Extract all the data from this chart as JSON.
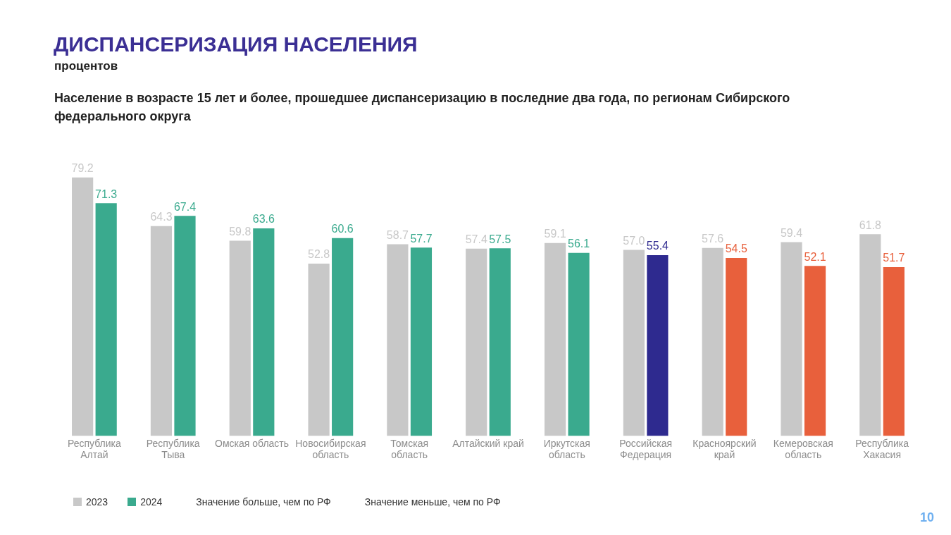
{
  "chart_data": {
    "type": "bar",
    "title": "ДИСПАНСЕРИЗАЦИЯ НАСЕЛЕНИЯ",
    "subtitle": "процентов",
    "categories": [
      "Республика Алтай",
      "Республика Тыва",
      "Омская область",
      "Новосибирская область",
      "Томская область",
      "Алтайский край",
      "Иркутская область",
      "Российская Федерация",
      "Красноярский край",
      "Кемеровская область",
      "Республика Хакасия"
    ],
    "series": [
      {
        "name": "2023",
        "color": "#c8c8c8",
        "values": [
          79.2,
          64.3,
          59.8,
          52.8,
          58.7,
          57.4,
          59.1,
          57.0,
          57.6,
          59.4,
          61.8
        ],
        "value_labels": [
          "79.2",
          "64.3",
          "59.8",
          "52.8",
          "58.7",
          "57.4",
          "59.1",
          "57.0",
          "57.6",
          "59.4",
          "61.8"
        ]
      },
      {
        "name": "2024",
        "colors": [
          "#3aaa8e",
          "#3aaa8e",
          "#3aaa8e",
          "#3aaa8e",
          "#3aaa8e",
          "#3aaa8e",
          "#3aaa8e",
          "#2e2a8f",
          "#e8603c",
          "#e8603c",
          "#e8603c"
        ],
        "values": [
          71.3,
          67.4,
          63.6,
          60.6,
          57.7,
          57.5,
          56.1,
          55.4,
          54.5,
          52.1,
          51.7
        ],
        "value_labels": [
          "71.3",
          "67.4",
          "63.6",
          "60.6",
          "57.7",
          "57.5",
          "56.1",
          "55.4",
          "54.5",
          "52.1",
          "51.7"
        ]
      }
    ],
    "legend": "bottom",
    "grid": false,
    "annotations": [
      "Население в возрасте 15 лет и более, прошедшее диспансеризацию в последние два года, по регионам Сибирского федерального округа",
      "Значение больше, чем по РФ",
      "Значение меньше, чем по РФ",
      "10"
    ]
  }
}
